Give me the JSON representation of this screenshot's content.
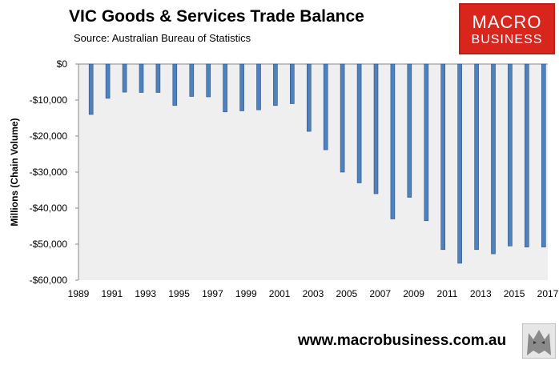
{
  "header": {
    "title": "VIC Goods & Services Trade Balance",
    "source": "Source:  Australian Bureau of Statistics"
  },
  "logo": {
    "line1": "MACRO",
    "line2": "BUSINESS",
    "color": "#d9261c"
  },
  "footer": {
    "website": "www.macrobusiness.com.au"
  },
  "chart_data": {
    "type": "bar",
    "title": "VIC Goods & Services Trade Balance",
    "xlabel": "",
    "ylabel": "Millions (Chain Volume)",
    "ylim": [
      -60000,
      0
    ],
    "yticks": [
      0,
      -10000,
      -20000,
      -30000,
      -40000,
      -50000,
      -60000
    ],
    "ytick_labels": [
      "$0",
      "-$10,000",
      "-$20,000",
      "-$30,000",
      "-$40,000",
      "-$50,000",
      "-$60,000"
    ],
    "xlim": [
      1989,
      2017
    ],
    "xticks": [
      1989,
      1991,
      1993,
      1995,
      1997,
      1999,
      2001,
      2003,
      2005,
      2007,
      2009,
      2011,
      2013,
      2015,
      2017
    ],
    "x": [
      1989.75,
      1990.75,
      1991.75,
      1992.75,
      1993.75,
      1994.75,
      1995.75,
      1996.75,
      1997.75,
      1998.75,
      1999.75,
      2000.75,
      2001.75,
      2002.75,
      2003.75,
      2004.75,
      2005.75,
      2006.75,
      2007.75,
      2008.75,
      2009.75,
      2010.75,
      2011.75,
      2012.75,
      2013.75,
      2014.75,
      2015.75,
      2016.75
    ],
    "values": [
      -14000,
      -9500,
      -7800,
      -7900,
      -7900,
      -11500,
      -9000,
      -9100,
      -13300,
      -13000,
      -12700,
      -11500,
      -11000,
      -18700,
      -23800,
      -30000,
      -33000,
      -36000,
      -43000,
      -37000,
      -43500,
      -51500,
      -55300,
      -51500,
      -52700,
      -50500,
      -50800,
      -50800
    ],
    "bar_color": "#4f81bd",
    "plot_background": "#efefef",
    "grid": false,
    "legend": false
  }
}
